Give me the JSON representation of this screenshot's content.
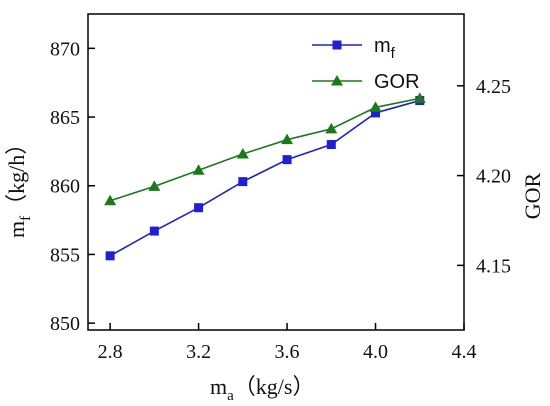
{
  "chart_data": {
    "type": "line",
    "x": [
      2.8,
      3.0,
      3.2,
      3.4,
      3.6,
      3.8,
      4.0,
      4.2
    ],
    "xlim": [
      2.7,
      4.4
    ],
    "xticks": [
      2.8,
      3.2,
      3.6,
      4.0,
      4.4
    ],
    "xtick_labels": [
      "2.8",
      "3.2",
      "3.6",
      "4.0",
      "4.4"
    ],
    "xlabel": {
      "main": "m",
      "sub": "a",
      "unit": "（kg/s）"
    },
    "y_left": {
      "label": {
        "main": "m",
        "sub": "f",
        "unit": "（kg/h）"
      },
      "lim": [
        849.5,
        872.5
      ],
      "ticks": [
        850,
        855,
        860,
        865,
        870
      ],
      "tick_labels": [
        "850",
        "855",
        "860",
        "865",
        "870"
      ]
    },
    "y_right": {
      "label": "GOR",
      "lim": [
        4.114,
        4.29
      ],
      "ticks": [
        4.15,
        4.2,
        4.25
      ],
      "tick_labels": [
        "4.15",
        "4.20",
        "4.25"
      ]
    },
    "series": [
      {
        "name": "m",
        "name_sub": "f",
        "axis": "left",
        "color": "#1f1fd6",
        "marker": "square",
        "values": [
          854.9,
          856.7,
          858.4,
          860.3,
          861.9,
          863.0,
          865.3,
          866.2
        ]
      },
      {
        "name": "GOR",
        "name_sub": "",
        "axis": "right",
        "color": "#1a7a1a",
        "marker": "triangle",
        "values": [
          4.186,
          4.194,
          4.203,
          4.212,
          4.22,
          4.226,
          4.238,
          4.243
        ]
      }
    ],
    "legend_position": "top-right",
    "grid": false
  }
}
